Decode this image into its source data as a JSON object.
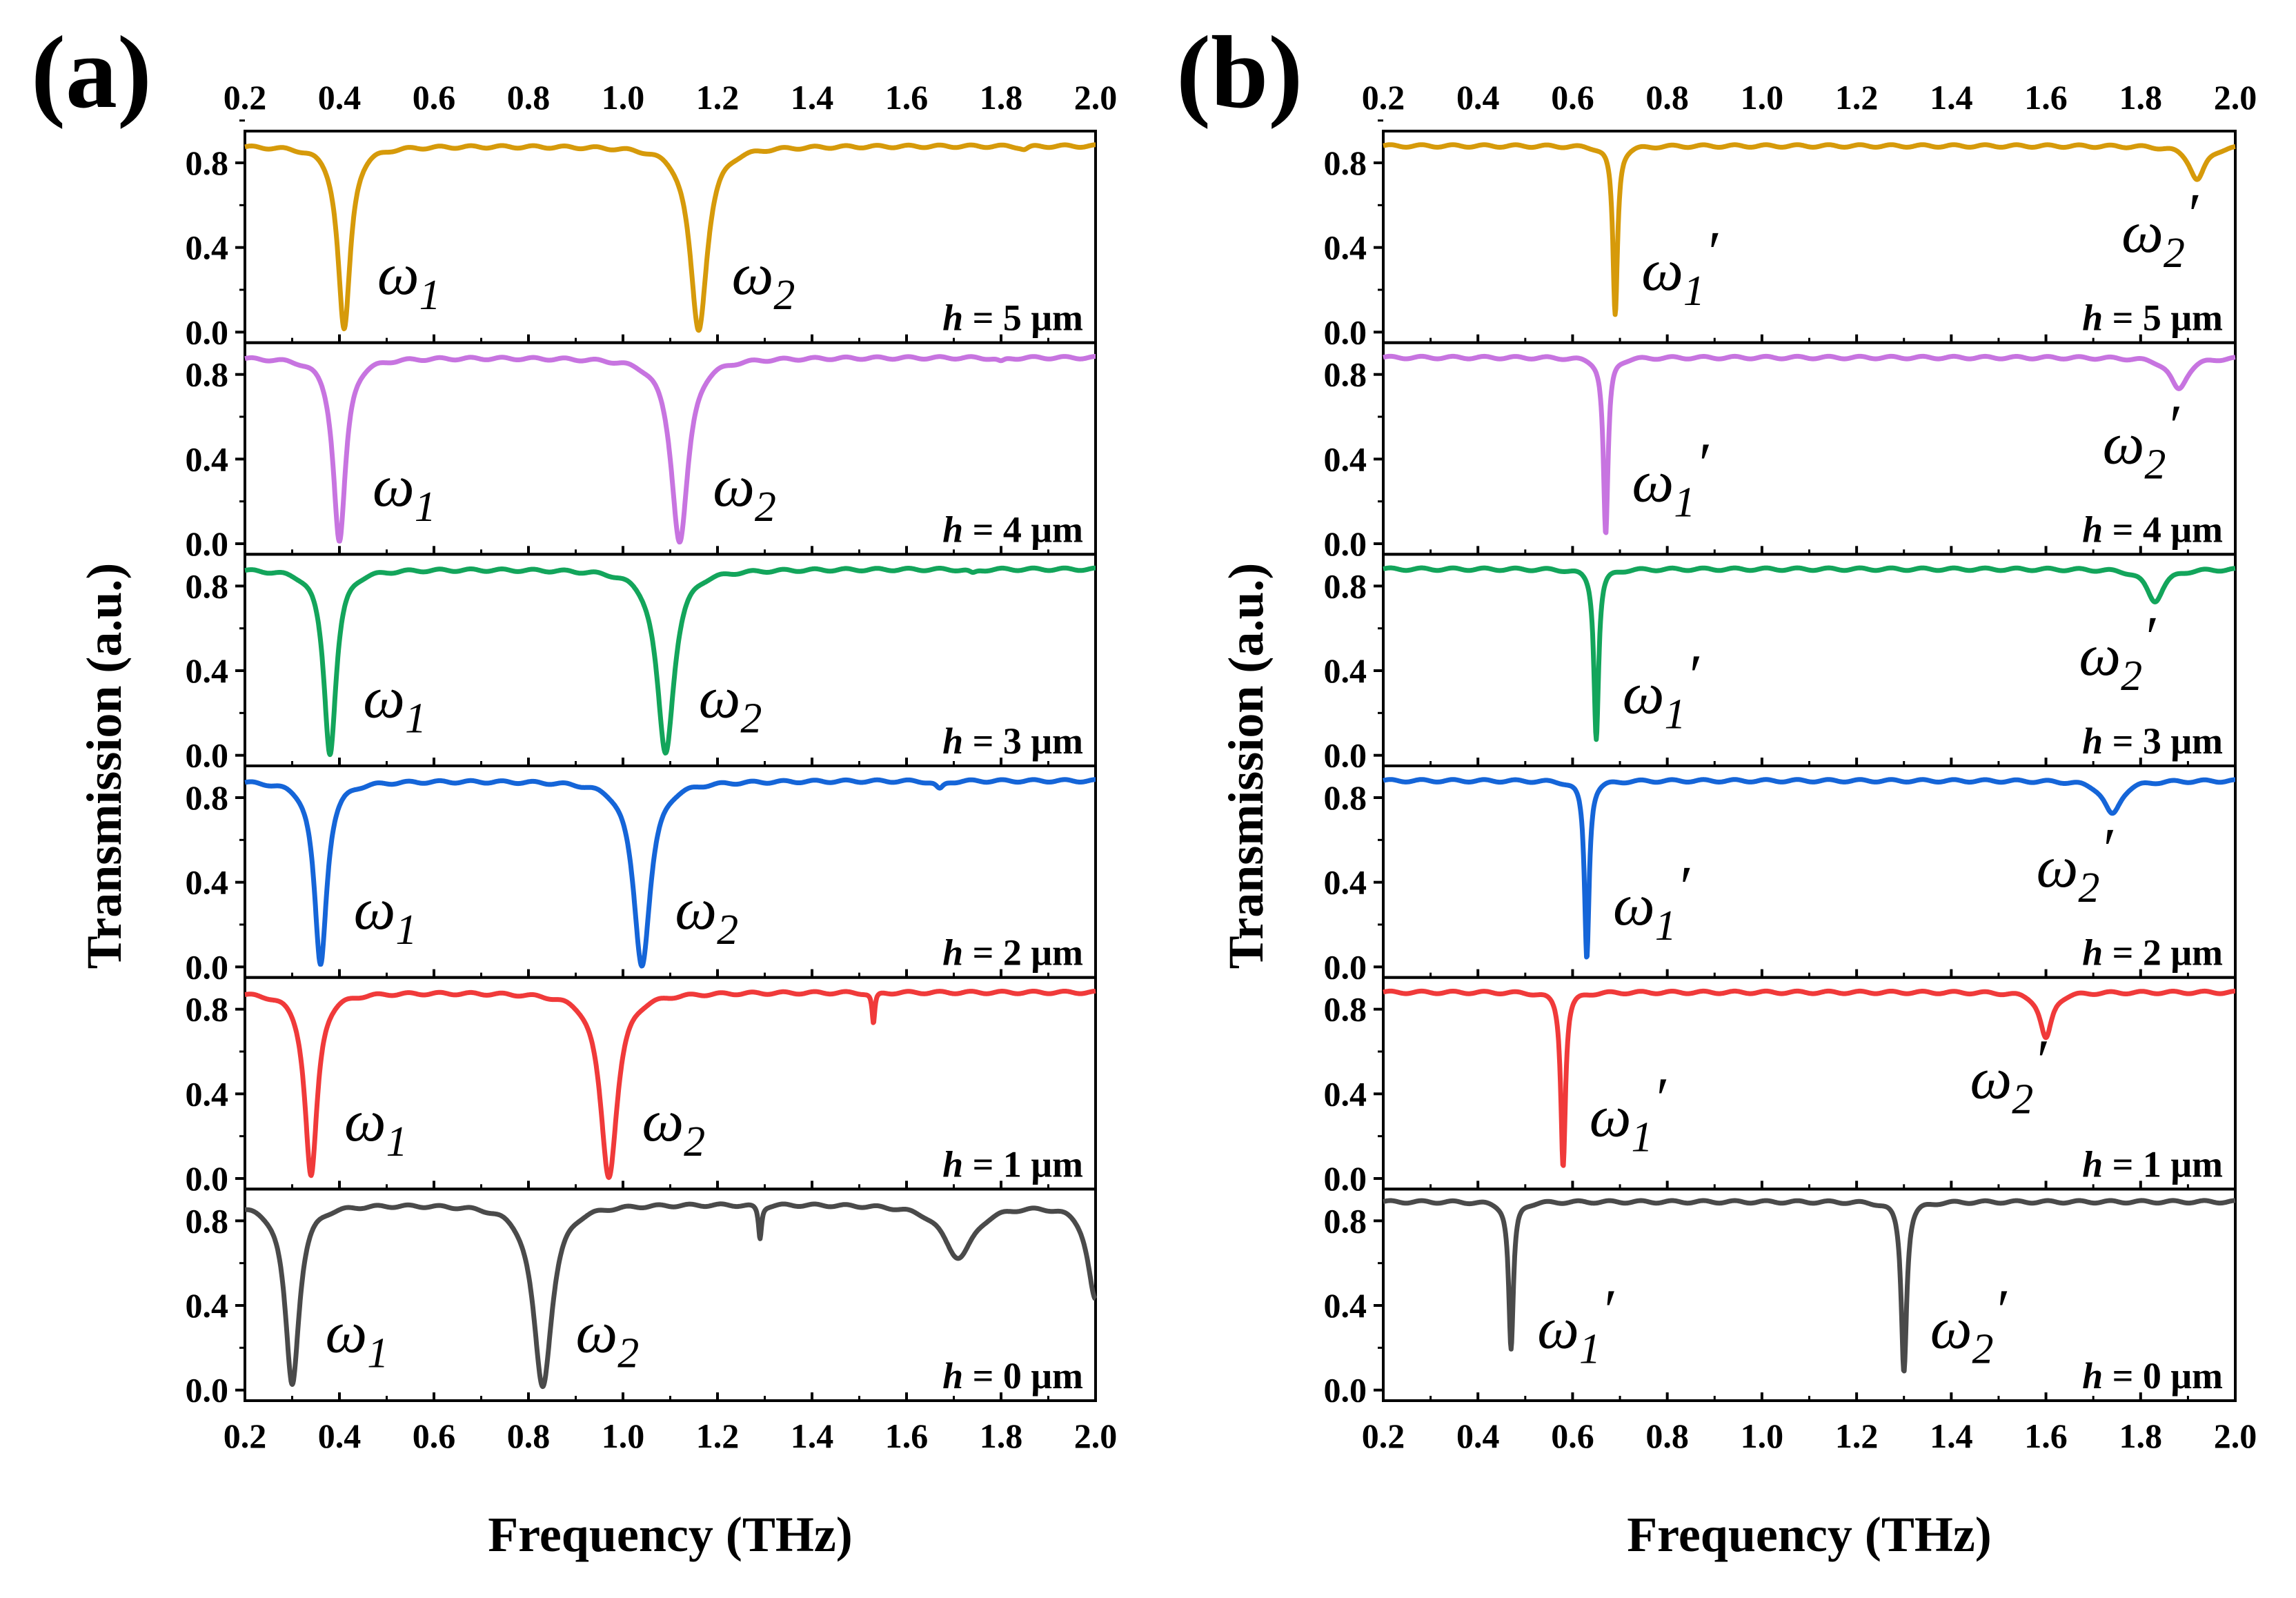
{
  "figure": {
    "panels": [
      {
        "label": "(a)",
        "x_axis_title": "Frequency (THz)",
        "y_axis_title": "Transmission (a.u.)"
      },
      {
        "label": "(b)",
        "x_axis_title": "Frequency (THz)",
        "y_axis_title": "Transmission (a.u.)"
      }
    ]
  },
  "chart_data": [
    {
      "type": "line",
      "panel": "(a)",
      "xlabel": "Frequency (THz)",
      "ylabel": "Transmission (a.u.)",
      "xlim": [
        0.2,
        2.0
      ],
      "ylim": [
        -0.05,
        0.95
      ],
      "x_ticks": [
        "0.2",
        "0.4",
        "0.6",
        "0.8",
        "1.0",
        "1.2",
        "1.4",
        "1.6",
        "1.8",
        "2.0"
      ],
      "y_ticks": [
        "0.0",
        "0.4",
        "0.8"
      ],
      "series": [
        {
          "name": "h = 5 μm",
          "color": "#D69A0A",
          "baseline": 0.88,
          "dips": [
            {
              "f": 0.41,
              "depth": 0.87,
              "width": 0.016,
              "label": "ω1"
            },
            {
              "f": 1.16,
              "depth": 0.87,
              "width": 0.022,
              "label": "ω2"
            },
            {
              "f": 1.85,
              "depth": 0.015,
              "width": 0.01
            }
          ]
        },
        {
          "name": "h = 4 μm",
          "color": "#C774E0",
          "baseline": 0.88,
          "dips": [
            {
              "f": 0.4,
              "depth": 0.87,
              "width": 0.016,
              "label": "ω1"
            },
            {
              "f": 1.12,
              "depth": 0.87,
              "width": 0.022,
              "label": "ω2"
            },
            {
              "f": 1.8,
              "depth": 0.02,
              "width": 0.01
            }
          ]
        },
        {
          "name": "h = 3 μm",
          "color": "#13A55B",
          "baseline": 0.88,
          "dips": [
            {
              "f": 0.38,
              "depth": 0.87,
              "width": 0.016,
              "label": "ω1"
            },
            {
              "f": 1.09,
              "depth": 0.87,
              "width": 0.022,
              "label": "ω2"
            },
            {
              "f": 1.74,
              "depth": 0.02,
              "width": 0.01
            }
          ]
        },
        {
          "name": "h = 2 μm",
          "color": "#1565D8",
          "baseline": 0.88,
          "dips": [
            {
              "f": 0.36,
              "depth": 0.87,
              "width": 0.016,
              "label": "ω1"
            },
            {
              "f": 1.04,
              "depth": 0.87,
              "width": 0.022,
              "label": "ω2"
            },
            {
              "f": 1.67,
              "depth": 0.04,
              "width": 0.01
            }
          ]
        },
        {
          "name": "h = 1 μm",
          "color": "#F03A3A",
          "baseline": 0.88,
          "dips": [
            {
              "f": 0.34,
              "depth": 0.87,
              "width": 0.016,
              "label": "ω1"
            },
            {
              "f": 0.97,
              "depth": 0.87,
              "width": 0.022,
              "label": "ω2"
            },
            {
              "f": 1.53,
              "depth": 0.15,
              "width": 0.0035
            }
          ]
        },
        {
          "name": "h = 0 μm",
          "color": "#4A4A4A",
          "baseline": 0.88,
          "dips": [
            {
              "f": 0.3,
              "depth": 0.85,
              "width": 0.018,
              "label": "ω1"
            },
            {
              "f": 0.83,
              "depth": 0.86,
              "width": 0.024,
              "label": "ω2"
            },
            {
              "f": 1.29,
              "depth": 0.16,
              "width": 0.004
            },
            {
              "f": 1.71,
              "depth": 0.25,
              "width": 0.04
            },
            {
              "f": 2.0,
              "depth": 0.45,
              "width": 0.02
            }
          ]
        }
      ]
    },
    {
      "type": "line",
      "panel": "(b)",
      "xlabel": "Frequency (THz)",
      "ylabel": "Transmission (a.u.)",
      "xlim": [
        0.2,
        2.0
      ],
      "ylim": [
        -0.05,
        0.95
      ],
      "x_ticks": [
        "0.2",
        "0.4",
        "0.6",
        "0.8",
        "1.0",
        "1.2",
        "1.4",
        "1.6",
        "1.8",
        "2.0"
      ],
      "y_ticks": [
        "0.0",
        "0.4",
        "0.8"
      ],
      "series": [
        {
          "name": "h = 5 μm",
          "color": "#D69A0A",
          "baseline": 0.88,
          "dips": [
            {
              "f": 0.69,
              "depth": 0.8,
              "width": 0.006,
              "label": "ω1′"
            },
            {
              "f": 1.92,
              "depth": 0.16,
              "width": 0.02,
              "label": "ω2′"
            }
          ]
        },
        {
          "name": "h = 4 μm",
          "color": "#C774E0",
          "baseline": 0.88,
          "dips": [
            {
              "f": 0.67,
              "depth": 0.84,
              "width": 0.006,
              "label": "ω1′"
            },
            {
              "f": 1.88,
              "depth": 0.15,
              "width": 0.022,
              "label": "ω2′"
            }
          ]
        },
        {
          "name": "h = 3 μm",
          "color": "#13A55B",
          "baseline": 0.88,
          "dips": [
            {
              "f": 0.65,
              "depth": 0.8,
              "width": 0.006,
              "label": "ω1′"
            },
            {
              "f": 1.83,
              "depth": 0.15,
              "width": 0.022,
              "label": "ω2′"
            }
          ]
        },
        {
          "name": "h = 2 μm",
          "color": "#1565D8",
          "baseline": 0.88,
          "dips": [
            {
              "f": 0.63,
              "depth": 0.84,
              "width": 0.006,
              "label": "ω1′"
            },
            {
              "f": 1.74,
              "depth": 0.16,
              "width": 0.022,
              "label": "ω2′"
            }
          ]
        },
        {
          "name": "h = 1 μm",
          "color": "#F03A3A",
          "baseline": 0.88,
          "dips": [
            {
              "f": 0.58,
              "depth": 0.82,
              "width": 0.006,
              "label": "ω1′"
            },
            {
              "f": 1.6,
              "depth": 0.22,
              "width": 0.015,
              "label": "ω2′"
            }
          ]
        },
        {
          "name": "h = 0 μm",
          "color": "#4A4A4A",
          "baseline": 0.89,
          "dips": [
            {
              "f": 0.47,
              "depth": 0.7,
              "width": 0.006,
              "label": "ω1′"
            },
            {
              "f": 1.3,
              "depth": 0.8,
              "width": 0.007,
              "label": "ω2′"
            }
          ]
        }
      ]
    }
  ]
}
